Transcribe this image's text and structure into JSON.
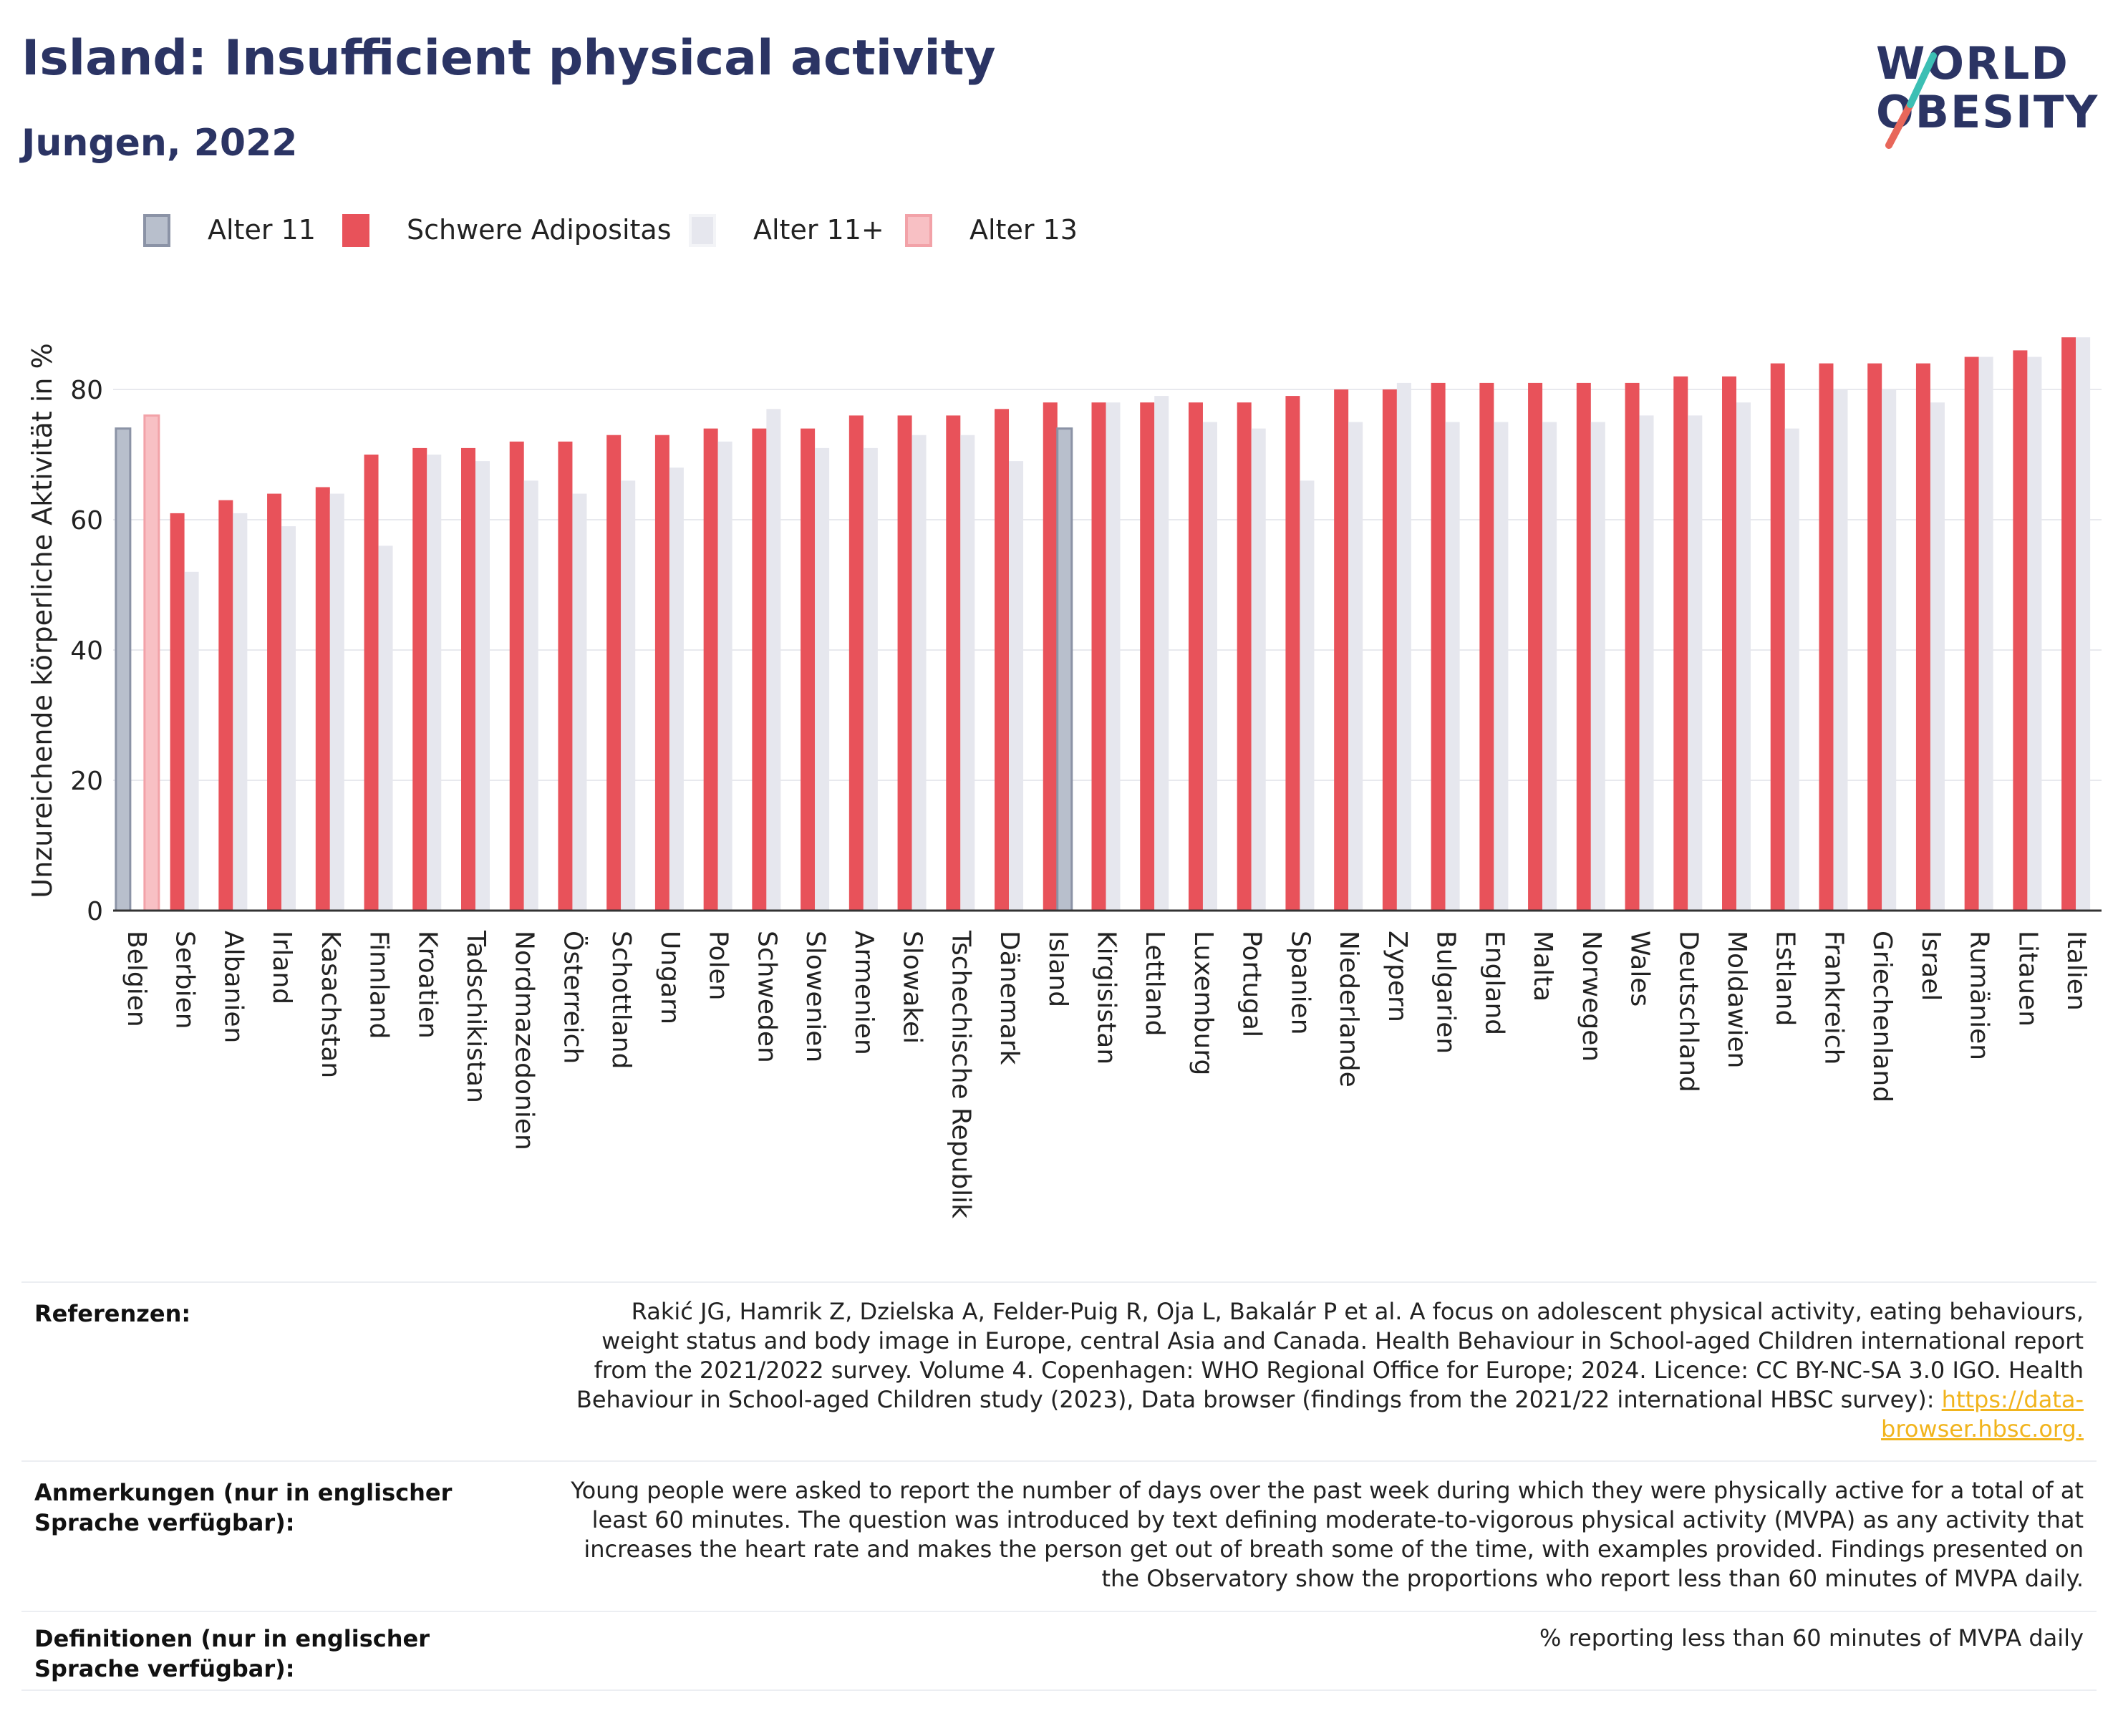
{
  "header": {
    "title": "Island: Insufficient physical activity",
    "subtitle": "Jungen, 2022"
  },
  "logo": {
    "line1": "WORLD",
    "line2": "OBESITY"
  },
  "legend": [
    {
      "label": "Alter 11",
      "color": "#b8bfcc"
    },
    {
      "label": "Schwere Adipositas",
      "color": "#e8525a"
    },
    {
      "label": "Alter 11+",
      "color": "#e6e7ee"
    },
    {
      "label": "Alter 13",
      "color": "#f8c0c4"
    }
  ],
  "chart_data": {
    "type": "bar",
    "ylabel": "Unzureichende körperliche Aktivität in %",
    "ylim": [
      0,
      92
    ],
    "yticks": [
      0,
      20,
      40,
      60,
      80
    ],
    "grid": true,
    "legend_position": "top-left",
    "categories": [
      "Belgien",
      "Serbien",
      "Albanien",
      "Irland",
      "Kasachstan",
      "Finnland",
      "Kroatien",
      "Tadschikistan",
      "Nordmazedonien",
      "Österreich",
      "Schottland",
      "Ungarn",
      "Polen",
      "Schweden",
      "Slowenien",
      "Armenien",
      "Slowakei",
      "Tschechische Republik",
      "Dänemark",
      "Island",
      "Kirgisistan",
      "Lettland",
      "Luxemburg",
      "Portugal",
      "Spanien",
      "Niederlande",
      "Zypern",
      "Bulgarien",
      "England",
      "Malta",
      "Norwegen",
      "Wales",
      "Deutschland",
      "Moldawien",
      "Estland",
      "Frankreich",
      "Griechenland",
      "Israel",
      "Rumänien",
      "Litauen",
      "Italien"
    ],
    "series": [
      {
        "name": "Alter 11",
        "values": [
          74,
          null,
          null,
          null,
          null,
          null,
          null,
          null,
          null,
          null,
          null,
          null,
          null,
          null,
          null,
          null,
          null,
          null,
          null,
          74,
          null,
          null,
          null,
          null,
          null,
          null,
          null,
          null,
          null,
          null,
          null,
          null,
          null,
          null,
          null,
          null,
          null,
          null,
          null,
          null,
          null
        ]
      },
      {
        "name": "Alter 13",
        "values": [
          76,
          null,
          null,
          null,
          null,
          null,
          null,
          null,
          null,
          null,
          null,
          null,
          null,
          null,
          null,
          null,
          null,
          null,
          null,
          null,
          null,
          null,
          null,
          null,
          null,
          null,
          null,
          null,
          null,
          null,
          null,
          null,
          null,
          null,
          null,
          null,
          null,
          null,
          null,
          null,
          null
        ]
      },
      {
        "name": "Schwere Adipositas",
        "values": [
          null,
          61,
          63,
          64,
          65,
          70,
          71,
          71,
          72,
          72,
          73,
          73,
          74,
          74,
          74,
          76,
          76,
          76,
          77,
          78,
          78,
          78,
          78,
          78,
          79,
          80,
          80,
          81,
          81,
          81,
          81,
          81,
          82,
          82,
          84,
          84,
          84,
          84,
          85,
          86,
          88
        ]
      },
      {
        "name": "Alter 11+",
        "values": [
          null,
          52,
          61,
          59,
          64,
          56,
          70,
          69,
          66,
          64,
          66,
          68,
          72,
          77,
          71,
          71,
          73,
          73,
          69,
          null,
          78,
          79,
          75,
          74,
          66,
          75,
          81,
          75,
          75,
          75,
          75,
          76,
          76,
          78,
          74,
          80,
          80,
          78,
          85,
          85,
          88
        ]
      }
    ]
  },
  "table": [
    {
      "label": "Referenzen:",
      "text": "Rakić JG, Hamrik Z, Dzielska A, Felder-Puig R, Oja L, Bakalár P et al. A focus on adolescent physical activity, eating behaviours, weight status and body image in Europe, central Asia and Canada. Health Behaviour in School-aged Children international report from the 2021/2022 survey. Volume 4. Copenhagen: WHO Regional Office for Europe; 2024. Licence: CC BY-NC-SA 3.0 IGO. Health Behaviour in School-aged Children study (2023), Data browser (findings from the 2021/22 international HBSC survey): ",
      "link": "https://data-browser.hbsc.org."
    },
    {
      "label": "Anmerkungen (nur in englischer Sprache verfügbar):",
      "text": "Young people were asked to report the number of days over the past week during which they were physically active for a total of at least 60 minutes. The question was introduced by text defining moderate-to-vigorous physical activity (MVPA) as any activity that increases the heart rate and makes the person get out of breath some of the time, with examples provided. Findings presented on the Observatory show the proportions who report less than 60 minutes of MVPA daily."
    },
    {
      "label": "Definitionen (nur in englischer Sprache verfügbar):",
      "text": "% reporting less than 60 minutes of MVPA daily"
    }
  ]
}
